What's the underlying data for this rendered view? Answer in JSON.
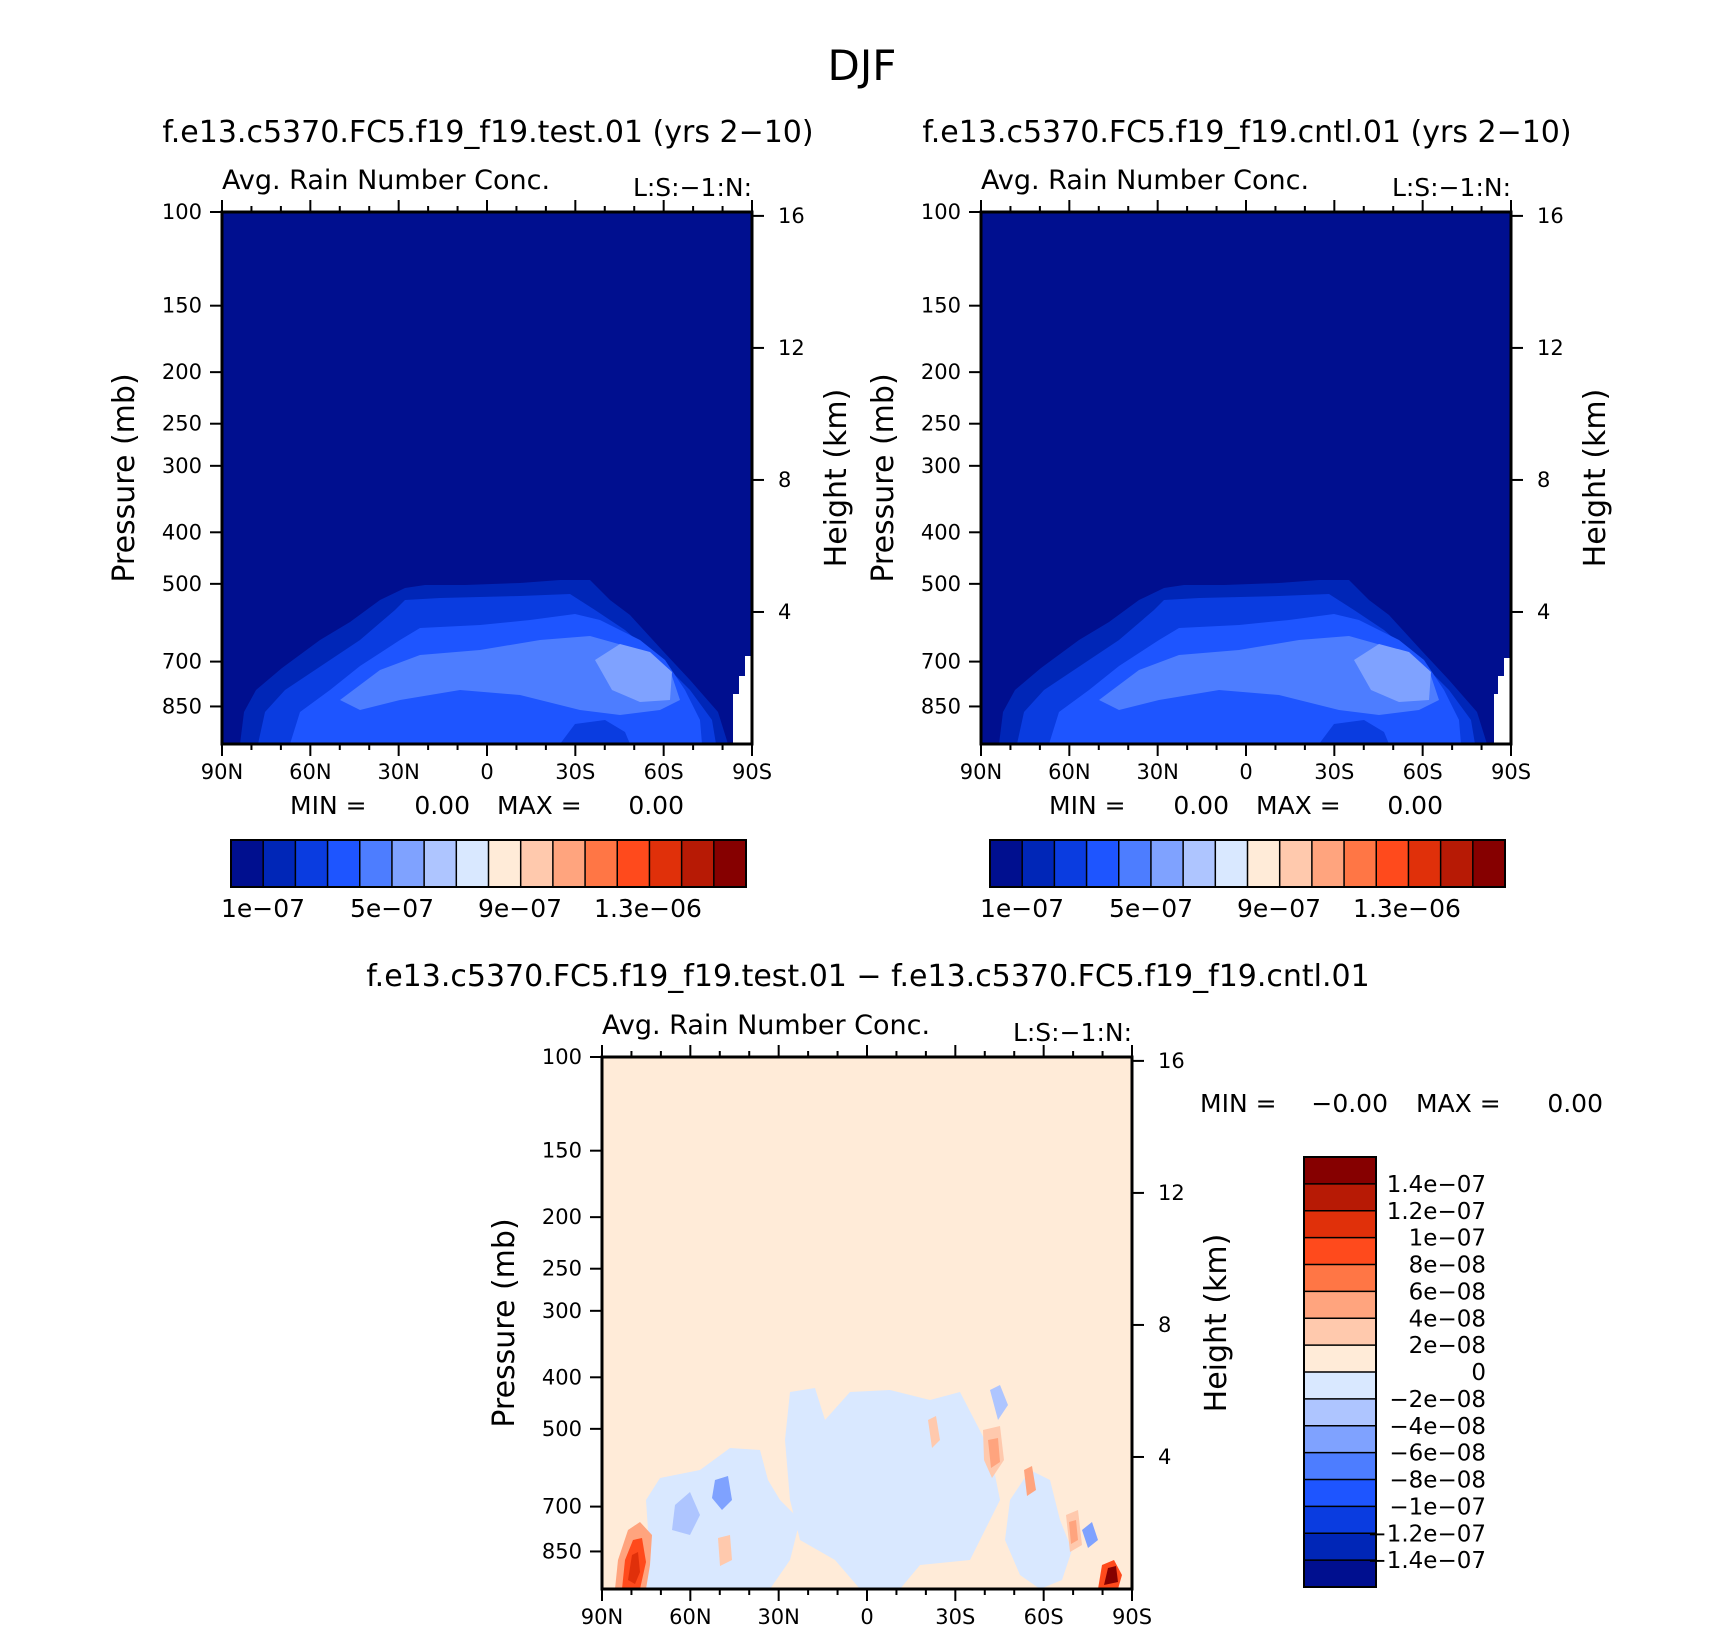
{
  "figure": {
    "season": "DJF",
    "colors": {
      "seq": [
        "#000f8f",
        "#0026b7",
        "#0a3ce0",
        "#1e55ff",
        "#4d7dff",
        "#7fa2ff",
        "#aec5ff",
        "#d9e8ff",
        "#ffebd8",
        "#ffc9ad",
        "#ffa47e",
        "#ff7645",
        "#ff4a1c",
        "#e0300a",
        "#b71a05",
        "#860000"
      ],
      "diff": [
        "#860000",
        "#b71a05",
        "#e0300a",
        "#ff4a1c",
        "#ff7645",
        "#ffa47e",
        "#ffc9ad",
        "#ffebd8",
        "#d9e8ff",
        "#aec5ff",
        "#7fa2ff",
        "#4d7dff",
        "#1e55ff",
        "#0a3ce0",
        "#0026b7",
        "#000f8f"
      ]
    }
  },
  "chart_data": [
    {
      "type": "heatmap",
      "case_title": "f.e13.c5370.FC5.f19_f19.test.01 (yrs 2−10)",
      "title": "Avg. Rain Number Conc.",
      "label_right": "L:S:−1:N:",
      "ylabel": "Pressure (mb)",
      "ylabel_right": "Height (km)",
      "xticks": [
        "90N",
        "60N",
        "30N",
        "0",
        "30S",
        "60S",
        "90S"
      ],
      "x_range": [
        90,
        -90
      ],
      "yticks": [
        100,
        150,
        200,
        250,
        300,
        400,
        500,
        700,
        850
      ],
      "y_range": [
        100,
        1000
      ],
      "height_ticks": [
        16,
        12,
        8,
        4
      ],
      "stats": {
        "min_label": "MIN =",
        "min": "0.00",
        "max_label": "MAX =",
        "max": "0.00"
      },
      "colorbar_labels": [
        "1e−07",
        "5e−07",
        "9e−07",
        "1.3e−06"
      ],
      "levels": [
        1e-07,
        2e-07,
        3e-07,
        4e-07,
        5e-07,
        6e-07,
        7e-07,
        8e-07,
        9e-07,
        1e-06,
        1.1e-06,
        1.2e-06,
        1.3e-06,
        1.4e-06,
        1.5e-06
      ],
      "field": "rain number concentration, zero above ~480 mb; 2–4e-07 in 30N–60S between 500 and 900 mb, max ~5e-07 near 50S 650 mb"
    },
    {
      "type": "heatmap",
      "case_title": "f.e13.c5370.FC5.f19_f19.cntl.01 (yrs 2−10)",
      "title": "Avg. Rain Number Conc.",
      "label_right": "L:S:−1:N:",
      "ylabel": "Pressure (mb)",
      "ylabel_right": "Height (km)",
      "xticks": [
        "90N",
        "60N",
        "30N",
        "0",
        "30S",
        "60S",
        "90S"
      ],
      "x_range": [
        90,
        -90
      ],
      "yticks": [
        100,
        150,
        200,
        250,
        300,
        400,
        500,
        700,
        850
      ],
      "y_range": [
        100,
        1000
      ],
      "height_ticks": [
        16,
        12,
        8,
        4
      ],
      "stats": {
        "min_label": "MIN =",
        "min": "0.00",
        "max_label": "MAX =",
        "max": "0.00"
      },
      "colorbar_labels": [
        "1e−07",
        "5e−07",
        "9e−07",
        "1.3e−06"
      ],
      "levels": [
        1e-07,
        2e-07,
        3e-07,
        4e-07,
        5e-07,
        6e-07,
        7e-07,
        8e-07,
        9e-07,
        1e-06,
        1.1e-06,
        1.2e-06,
        1.3e-06,
        1.4e-06,
        1.5e-06
      ],
      "field": "same structure as test case"
    },
    {
      "type": "heatmap",
      "case_title": "f.e13.c5370.FC5.f19_f19.test.01 − f.e13.c5370.FC5.f19_f19.cntl.01",
      "title": "Avg. Rain Number Conc.",
      "label_right": "L:S:−1:N:",
      "ylabel": "Pressure (mb)",
      "ylabel_right": "Height (km)",
      "xticks": [
        "90N",
        "60N",
        "30N",
        "0",
        "30S",
        "60S",
        "90S"
      ],
      "x_range": [
        90,
        -90
      ],
      "yticks": [
        100,
        150,
        200,
        250,
        300,
        400,
        500,
        700,
        850
      ],
      "y_range": [
        100,
        1000
      ],
      "height_ticks": [
        16,
        12,
        8,
        4
      ],
      "stats": {
        "min_label": "MIN =",
        "min": "−0.00",
        "max_label": "MAX =",
        "max": "0.00"
      },
      "colorbar_labels": [
        "1.4e−07",
        "1.2e−07",
        "1e−07",
        "8e−08",
        "6e−08",
        "4e−08",
        "2e−08",
        "0",
        "−2e−08",
        "−4e−08",
        "−6e−08",
        "−8e−08",
        "−1e−07",
        "−1.2e−07",
        "−1.4e−07"
      ],
      "field": "difference mostly 0 to 2e-08; weak negative patches below 400 mb; positive maxima ~1.4e-07 near 80N and 80S at 850 mb"
    }
  ]
}
